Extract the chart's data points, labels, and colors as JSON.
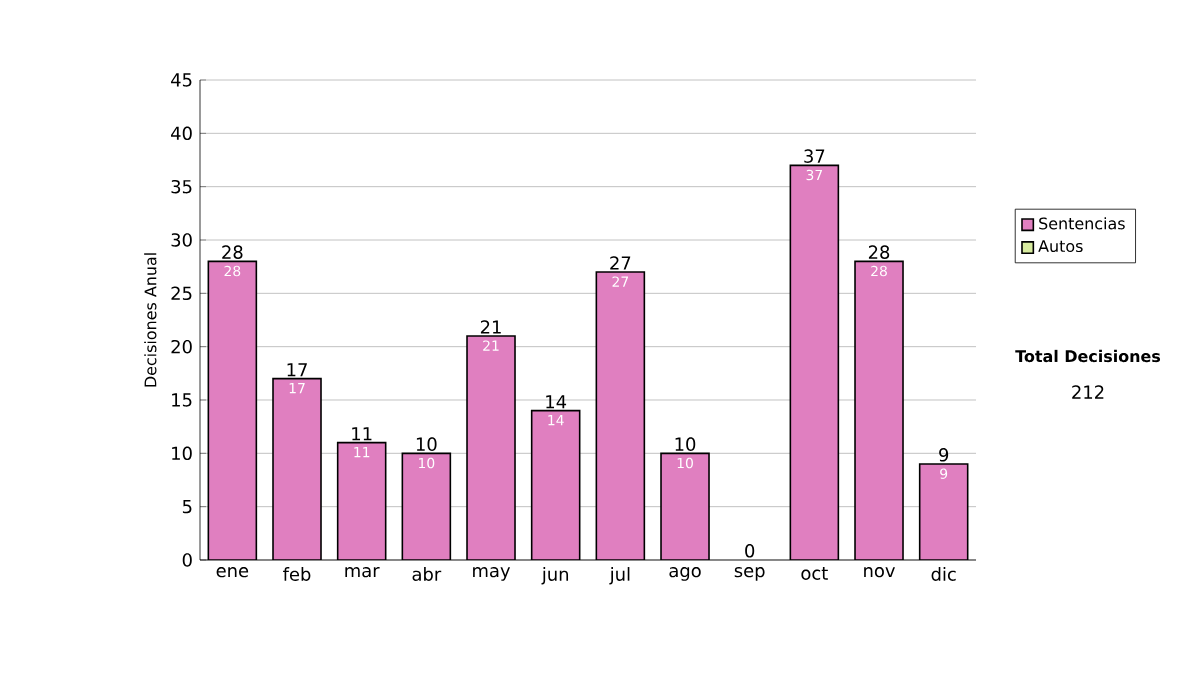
{
  "chart_data": {
    "type": "bar",
    "stacked": true,
    "ylabel": "Decisiones Anual",
    "categories": [
      "ene",
      "feb",
      "mar",
      "abr",
      "may",
      "jun",
      "jul",
      "ago",
      "sep",
      "oct",
      "nov",
      "dic"
    ],
    "series": [
      {
        "name": "Sentencias",
        "color": "#e07fc0",
        "values": [
          28,
          17,
          11,
          10,
          21,
          14,
          27,
          10,
          0,
          37,
          28,
          9
        ],
        "value_labels": [
          "28",
          "17",
          "11",
          "10",
          "21",
          "14",
          "27",
          "10",
          null,
          "37",
          "28",
          "9"
        ]
      },
      {
        "name": "Autos",
        "color": "#d8eca0",
        "values": [
          0,
          0,
          0,
          0,
          0,
          0,
          0,
          0,
          0,
          0,
          0,
          0
        ]
      }
    ],
    "totals": [
      "28",
      "17",
      "11",
      "10",
      "21",
      "14",
      "27",
      "10",
      "0",
      "37",
      "28",
      "9"
    ],
    "ylim": [
      0,
      45
    ],
    "yticks": [
      0,
      5,
      10,
      15,
      20,
      25,
      30,
      35,
      40,
      45
    ],
    "grid": "y",
    "legend": "right",
    "annotations": [
      "Total Decisiones",
      "212"
    ]
  }
}
